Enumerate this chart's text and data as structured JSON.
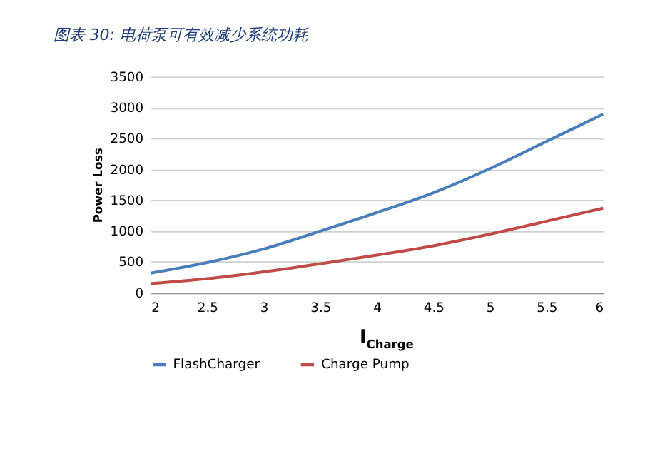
{
  "chart_data": {
    "type": "line",
    "title": "图表 30: 电荷泵可有效减少系统功耗",
    "xlabel": "I$_{Charge}$",
    "ylabel": "Power Loss",
    "x": [
      2,
      2.5,
      3,
      3.5,
      4,
      4.5,
      5,
      5.5,
      6
    ],
    "series": [
      {
        "name": "FlashCharger",
        "color": "#4a7ebb",
        "values": [
          320,
          490,
          710,
          1000,
          1300,
          1620,
          2010,
          2450,
          2890
        ]
      },
      {
        "name": "Charge Pump",
        "color": "#be4b48",
        "values": [
          150,
          230,
          340,
          470,
          610,
          760,
          950,
          1160,
          1370
        ]
      }
    ],
    "xlim": [
      2,
      6
    ],
    "xticks": [
      2,
      2.5,
      3,
      3.5,
      4,
      4.5,
      5,
      5.5,
      6
    ],
    "ylim": [
      0,
      3500
    ],
    "yticks": [
      0,
      500,
      1000,
      1500,
      2000,
      2500,
      3000,
      3500
    ],
    "grid": "y",
    "legend": "bottom",
    "marker": "none",
    "line_style": "solid"
  }
}
